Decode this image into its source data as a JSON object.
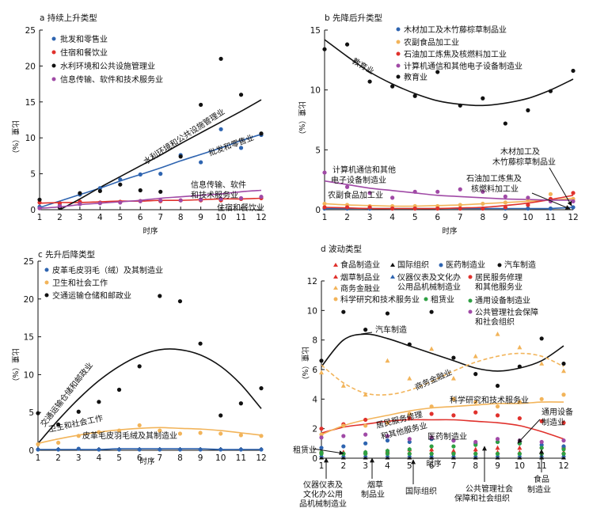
{
  "chart_data": [
    {
      "id": "a",
      "type": "scatter",
      "title": "a 持续上升类型",
      "xlabel": "时序",
      "ylabel": "比重（%）",
      "xlim": [
        1,
        12
      ],
      "ylim": [
        0,
        25
      ],
      "x_ticks": [
        1,
        2,
        3,
        4,
        5,
        6,
        7,
        8,
        9,
        10,
        11,
        12
      ],
      "y_ticks": [
        0,
        5,
        10,
        15,
        20,
        25
      ],
      "series": [
        {
          "name": "批发和零售业",
          "color": "#2e64b0",
          "values": [
            0.4,
            0.6,
            2.1,
            3.0,
            4.2,
            4.9,
            5.0,
            7.6,
            6.6,
            11.2,
            8.6,
            10.4
          ],
          "trend": [
            0.3,
            1.2,
            2.1,
            3.0,
            4.0,
            4.9,
            5.8,
            6.8,
            7.7,
            8.6,
            9.6,
            10.5
          ]
        },
        {
          "name": "住宿和餐饮业",
          "color": "#e0312c",
          "values": [
            1.0,
            0.9,
            1.1,
            1.0,
            1.1,
            1.2,
            1.2,
            1.3,
            1.3,
            1.3,
            1.5,
            1.6
          ],
          "trend": [
            0.9,
            1.0,
            1.0,
            1.1,
            1.2,
            1.2,
            1.3,
            1.3,
            1.4,
            1.5,
            1.5,
            1.6
          ]
        },
        {
          "name": "水利环境和公共设施管理业",
          "color": "#111111",
          "values": [
            1.4,
            0.3,
            2.3,
            2.6,
            3.5,
            2.7,
            2.5,
            7.4,
            14.6,
            21.0,
            16.0,
            10.6
          ],
          "trend": [
            -1.4,
            0.0,
            1.5,
            3.1,
            4.6,
            6.1,
            7.6,
            9.2,
            10.7,
            12.2,
            13.7,
            15.3
          ]
        },
        {
          "name": "信息传输、软件和技术服务业",
          "color": "#a04aa6",
          "values": [
            0.2,
            0.5,
            0.8,
            0.9,
            1.0,
            1.2,
            1.3,
            1.3,
            1.4,
            1.5,
            1.6,
            1.8
          ],
          "trend": [
            0.2,
            0.4,
            0.7,
            0.9,
            1.1,
            1.3,
            1.6,
            1.8,
            2.0,
            2.2,
            2.5,
            2.7
          ]
        }
      ],
      "annotations": [
        "水利环境和公共设施管理业",
        "批发和零售业",
        "信息传输、软件",
        "和技术服务业",
        "住宿和餐饮业"
      ]
    },
    {
      "id": "b",
      "type": "scatter",
      "title": "b 先降后升类型",
      "xlabel": "时序",
      "ylabel": "比重（%）",
      "xlim": [
        1,
        12
      ],
      "ylim": [
        0,
        15
      ],
      "x_ticks": [
        1,
        2,
        3,
        4,
        5,
        6,
        7,
        8,
        9,
        10,
        11,
        12
      ],
      "y_ticks": [
        0,
        5,
        10,
        15
      ],
      "series": [
        {
          "name": "木材加工及木竹藤棕草制品业",
          "color": "#2e64b0",
          "values": [
            0.1,
            0.1,
            0.1,
            0.1,
            0.1,
            0.1,
            0.1,
            0.1,
            0.1,
            0.1,
            0.1,
            0.2
          ],
          "trend": [
            0.1,
            0.1,
            0.1,
            0.1,
            0.1,
            0.1,
            0.1,
            0.1,
            0.1,
            0.1,
            0.1,
            0.2
          ]
        },
        {
          "name": "农副食品加工业",
          "color": "#f2b45a",
          "values": [
            0.5,
            0.4,
            0.3,
            0.3,
            0.3,
            0.3,
            0.4,
            0.5,
            0.6,
            0.8,
            1.3,
            0.9
          ],
          "trend": [
            0.5,
            0.4,
            0.35,
            0.3,
            0.3,
            0.35,
            0.4,
            0.5,
            0.6,
            0.7,
            0.8,
            0.95
          ]
        },
        {
          "name": "石油加工炼焦及核燃料加工业",
          "color": "#e0312c",
          "values": [
            0.2,
            0.2,
            0.2,
            0.1,
            0.1,
            0.1,
            0.1,
            0.1,
            0.2,
            0.4,
            0.9,
            1.4
          ],
          "trend": [
            0.2,
            0.15,
            0.1,
            0.1,
            0.1,
            0.1,
            0.15,
            0.2,
            0.35,
            0.55,
            0.85,
            1.2
          ]
        },
        {
          "name": "计算机通信和其他电子设备制造业",
          "color": "#a04aa6",
          "values": [
            3.1,
            1.9,
            1.4,
            1.0,
            1.5,
            1.5,
            1.7,
            1.5,
            1.1,
            1.0,
            0.7,
            0.7
          ],
          "trend": [
            2.4,
            2.1,
            1.8,
            1.6,
            1.4,
            1.2,
            1.1,
            1.0,
            0.9,
            0.85,
            0.8,
            0.8
          ]
        },
        {
          "name": "教育业",
          "color": "#111111",
          "values": [
            13.4,
            13.8,
            10.7,
            10.3,
            9.5,
            11.5,
            8.7,
            9.3,
            7.2,
            8.3,
            9.9,
            11.6
          ],
          "trend": [
            14.2,
            12.8,
            11.5,
            10.5,
            9.7,
            9.1,
            8.8,
            8.7,
            8.9,
            9.3,
            10.0,
            10.9
          ]
        }
      ],
      "annotations": [
        "教育业",
        "计算机通信和其他",
        "电子设备制造业",
        "农副食品加工业",
        "木材加工及",
        "木竹藤棕草制品业",
        "石油加工炼焦及",
        "核燃料加工业"
      ]
    },
    {
      "id": "c",
      "type": "scatter",
      "title": "c 先升后降类型",
      "xlabel": "时序",
      "ylabel": "比重（%）",
      "xlim": [
        1,
        12
      ],
      "ylim": [
        0,
        25
      ],
      "x_ticks": [
        1,
        2,
        3,
        4,
        5,
        6,
        7,
        8,
        9,
        10,
        11,
        12
      ],
      "y_ticks": [
        0,
        5,
        10,
        15,
        20,
        25
      ],
      "series": [
        {
          "name": "皮革毛皮羽毛（绒）及其制造业",
          "color": "#2e64b0",
          "values": [
            0.1,
            0.1,
            0.2,
            0.1,
            0.1,
            0.1,
            0.1,
            0.1,
            0.1,
            0.1,
            0.1,
            0.1
          ],
          "trend": [
            0.1,
            0.1,
            0.1,
            0.1,
            0.2,
            0.2,
            0.2,
            0.2,
            0.2,
            0.1,
            0.1,
            0.1
          ]
        },
        {
          "name": "卫生和社会工作",
          "color": "#f2b45a",
          "values": [
            0.8,
            1.0,
            1.9,
            2.4,
            2.6,
            3.3,
            2.6,
            2.2,
            2.3,
            2.2,
            2.0,
            1.9
          ],
          "trend": [
            0.9,
            1.5,
            2.0,
            2.4,
            2.7,
            2.9,
            3.0,
            2.9,
            2.8,
            2.6,
            2.3,
            2.0
          ]
        },
        {
          "name": "交通运输仓储和邮政业",
          "color": "#111111",
          "values": [
            4.9,
            3.4,
            5.1,
            6.4,
            8.0,
            11.1,
            20.4,
            19.7,
            14.1,
            4.6,
            6.2,
            8.2
          ],
          "trend": [
            0.9,
            4.0,
            6.8,
            9.2,
            11.1,
            12.5,
            13.3,
            13.3,
            12.6,
            11.1,
            8.7,
            5.5
          ]
        }
      ],
      "annotations": [
        "交通运输仓储和邮政业",
        "卫生和社会工作",
        "皮革毛皮羽毛绒及其制造业"
      ]
    },
    {
      "id": "d",
      "type": "scatter",
      "title": "d 波动类型",
      "xlabel": "时序",
      "ylabel": "比重（%）",
      "xlim": [
        1,
        12
      ],
      "ylim": [
        0,
        12
      ],
      "x_ticks": [
        1,
        2,
        3,
        4,
        5,
        6,
        7,
        8,
        9,
        10,
        11,
        12
      ],
      "y_ticks": [
        0,
        2,
        4,
        6,
        8,
        10,
        12
      ],
      "series": [
        {
          "name": "食品制造业",
          "color": "#e0312c",
          "marker": "triangle",
          "values": [
            0.5,
            0.4,
            0.4,
            0.5,
            0.6,
            0.6,
            0.5,
            0.6,
            0.7,
            0.7,
            0.8,
            0.8
          ]
        },
        {
          "name": "国际组织",
          "color": "#111111",
          "marker": "triangle",
          "values": [
            0.05,
            0.05,
            0.05,
            0.05,
            0.05,
            0.05,
            0.05,
            0.05,
            0.05,
            0.05,
            0.05,
            0.05
          ]
        },
        {
          "name": "医药制造业",
          "color": "#2e64b0",
          "values": [
            0.7,
            0.8,
            1.0,
            1.2,
            1.1,
            1.3,
            1.2,
            1.0,
            1.1,
            1.0,
            0.9,
            0.8
          ]
        },
        {
          "name": "汽车制造",
          "color": "#111111",
          "values": [
            6.6,
            9.9,
            8.7,
            9.8,
            7.7,
            9.9,
            6.8,
            5.7,
            4.9,
            6.2,
            8.1,
            6.4
          ],
          "trend": [
            6.2,
            8.0,
            8.4,
            8.1,
            7.6,
            7.1,
            6.6,
            6.1,
            5.9,
            6.1,
            6.6,
            7.6
          ]
        },
        {
          "name": "烟草制品业",
          "color": "#e0312c",
          "marker": "triangle",
          "values": [
            0.4,
            0.4,
            0.4,
            0.4,
            0.4,
            0.4,
            0.4,
            0.4,
            0.4,
            0.4,
            0.4,
            0.4
          ]
        },
        {
          "name": "仪器仪表及文化办公用品机械制造业",
          "color": "#2e64b0",
          "marker": "triangle",
          "values": [
            0.2,
            0.2,
            0.2,
            0.2,
            0.2,
            0.2,
            0.2,
            0.2,
            0.2,
            0.2,
            0.2,
            0.2
          ]
        },
        {
          "name": "居民服务修理和其他服务业",
          "color": "#e0312c",
          "values": [
            2.0,
            2.3,
            2.6,
            2.4,
            2.7,
            3.0,
            2.9,
            3.1,
            2.9,
            2.7,
            2.5,
            2.4
          ],
          "trend": [
            1.7,
            2.1,
            2.3,
            2.5,
            2.6,
            2.6,
            2.6,
            2.5,
            2.4,
            2.2,
            1.8,
            1.3
          ]
        },
        {
          "name": "商务金融业",
          "color": "#f2b45a",
          "marker": "triangle",
          "values": [
            5.8,
            4.9,
            4.3,
            6.6,
            5.4,
            7.4,
            5.4,
            6.9,
            8.4,
            7.5,
            6.4,
            5.9
          ],
          "trend": [
            6.3,
            5.1,
            4.4,
            4.3,
            4.6,
            5.2,
            5.9,
            6.5,
            6.9,
            7.1,
            6.9,
            6.2
          ]
        },
        {
          "name": "通用设备制造业",
          "color": "#2ea043",
          "values": [
            0.3,
            0.3,
            0.4,
            0.5,
            0.6,
            0.8,
            0.8,
            0.9,
            1.1,
            1.0,
            0.7,
            0.6
          ]
        },
        {
          "name": "科学研究和技术服务业",
          "color": "#f2b45a",
          "values": [
            1.6,
            2.2,
            2.2,
            2.4,
            3.0,
            3.5,
            4.0,
            3.8,
            3.5,
            3.8,
            4.0,
            4.3
          ],
          "trend": [
            1.6,
            2.2,
            2.6,
            2.9,
            3.2,
            3.4,
            3.5,
            3.6,
            3.7,
            3.7,
            3.8,
            3.8
          ]
        },
        {
          "name": "租赁业",
          "color": "#2ea043",
          "values": [
            0.4,
            0.3,
            0.3,
            0.3,
            0.3,
            0.3,
            0.3,
            0.3,
            0.3,
            0.3,
            0.3,
            0.3
          ]
        },
        {
          "name": "公共管理社会保障和社会组织",
          "color": "#a04aa6",
          "values": [
            1.4,
            1.5,
            1.6,
            1.5,
            1.3,
            1.4,
            1.2,
            1.1,
            1.3,
            1.2,
            1.1,
            1.2
          ]
        }
      ],
      "annotations": [
        "汽车制造",
        "商务金融业",
        "科学研究和技术服务业",
        "居民服务修理",
        "和其他服务业",
        "医药制造业",
        "通用设备",
        "制造业",
        "租赁业",
        "仪器仪表及",
        "文化办公用",
        "品机械制造业",
        "烟草",
        "制品业",
        "国际组织",
        "公共管理社会",
        "保障和社会组织",
        "食品",
        "制造业"
      ]
    }
  ]
}
